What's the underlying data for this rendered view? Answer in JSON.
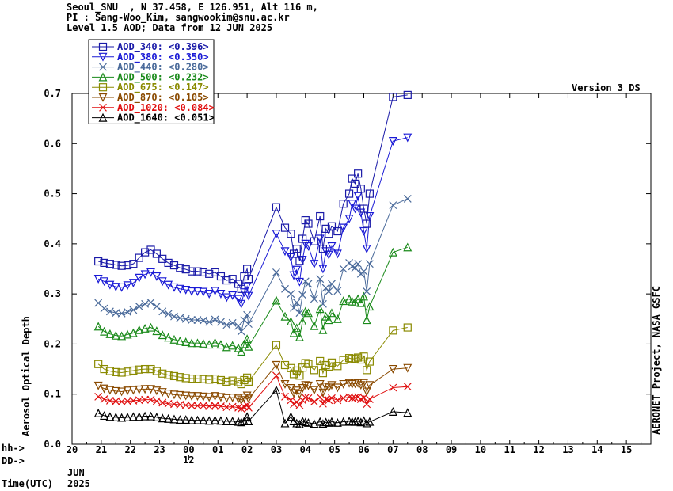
{
  "header": {
    "line1": "Seoul_SNU  , N 37.458, E 126.951, Alt 116 m,",
    "line2": "PI : Sang-Woo_Kim, sangwookim@snu.ac.kr",
    "line3": "Level 1.5 AOD; Data from 12 JUN 2025"
  },
  "version_label": "Version 3 DS",
  "side_label": "AERONET Project, NASA GSFC",
  "axis_labels": {
    "hh": "hh->",
    "dd": "DD->",
    "time": "Time(UTC)",
    "month": "JUN",
    "year": "2025"
  },
  "colors": {
    "AOD_340": "#1a1aa8",
    "AOD_380": "#1a1ad6",
    "AOD_440": "#4a6a9a",
    "AOD_500": "#1a8a1a",
    "AOD_675": "#8a8a00",
    "AOD_870": "#8a4a00",
    "AOD_1020": "#e01010",
    "AOD_1640": "#000000"
  },
  "chart_data": {
    "type": "line",
    "ylabel": "Aerosol Optical Depth",
    "ylim": [
      0,
      0.7
    ],
    "yticks": [
      "0.0",
      "0.1",
      "0.2",
      "0.3",
      "0.4",
      "0.5",
      "0.6",
      "0.7"
    ],
    "xlim": [
      20,
      16
    ],
    "xticks": [
      "20",
      "21",
      "22",
      "23",
      "00",
      "01",
      "02",
      "03",
      "04",
      "05",
      "06",
      "07",
      "08",
      "09",
      "10",
      "11",
      "12",
      "13",
      "14",
      "15"
    ],
    "day_label": "12",
    "x_unit": "hours UTC since 00 UTC 12 JUN 2025 (negative = 11 JUN)",
    "legend_position": "top-left",
    "legend": [
      {
        "name": "AOD_340",
        "mean": "<0.396>",
        "marker": "square"
      },
      {
        "name": "AOD_380",
        "mean": "<0.350>",
        "marker": "triangle-down"
      },
      {
        "name": "AOD_440",
        "mean": "<0.280>",
        "marker": "x"
      },
      {
        "name": "AOD_500",
        "mean": "<0.232>",
        "marker": "triangle-up"
      },
      {
        "name": "AOD_675",
        "mean": "<0.147>",
        "marker": "square"
      },
      {
        "name": "AOD_870",
        "mean": "<0.105>",
        "marker": "triangle-down"
      },
      {
        "name": "AOD_1020",
        "mean": "<0.084>",
        "marker": "x"
      },
      {
        "name": "AOD_1640",
        "mean": "<0.051>",
        "marker": "triangle-up"
      }
    ],
    "x": [
      -3.1,
      -2.9,
      -2.7,
      -2.5,
      -2.3,
      -2.1,
      -1.9,
      -1.7,
      -1.5,
      -1.3,
      -1.1,
      -0.9,
      -0.7,
      -0.5,
      -0.3,
      -0.1,
      0.1,
      0.3,
      0.5,
      0.7,
      0.9,
      1.1,
      1.3,
      1.5,
      1.7,
      1.8,
      1.9,
      2.0,
      2.05,
      3.0,
      3.3,
      3.5,
      3.6,
      3.7,
      3.8,
      3.9,
      4.0,
      4.1,
      4.3,
      4.5,
      4.6,
      4.7,
      4.8,
      4.9,
      5.1,
      5.3,
      5.5,
      5.6,
      5.7,
      5.8,
      5.9,
      6.0,
      6.1,
      6.2,
      7.0,
      7.5
    ],
    "series": [
      {
        "name": "AOD_340",
        "values": [
          0.365,
          0.362,
          0.36,
          0.358,
          0.356,
          0.357,
          0.36,
          0.372,
          0.383,
          0.388,
          0.38,
          0.37,
          0.362,
          0.357,
          0.352,
          0.349,
          0.345,
          0.345,
          0.343,
          0.34,
          0.343,
          0.335,
          0.327,
          0.33,
          0.32,
          0.31,
          0.335,
          0.35,
          0.33,
          0.473,
          0.432,
          0.42,
          0.38,
          0.39,
          0.366,
          0.41,
          0.447,
          0.44,
          0.405,
          0.455,
          0.39,
          0.43,
          0.42,
          0.435,
          0.425,
          0.48,
          0.5,
          0.53,
          0.52,
          0.54,
          0.51,
          0.47,
          0.44,
          0.5,
          0.693,
          0.697
        ]
      },
      {
        "name": "AOD_380",
        "values": [
          0.33,
          0.325,
          0.318,
          0.314,
          0.313,
          0.317,
          0.322,
          0.332,
          0.339,
          0.343,
          0.335,
          0.325,
          0.318,
          0.313,
          0.31,
          0.308,
          0.305,
          0.305,
          0.304,
          0.3,
          0.306,
          0.3,
          0.293,
          0.297,
          0.29,
          0.28,
          0.303,
          0.315,
          0.296,
          0.42,
          0.385,
          0.373,
          0.337,
          0.348,
          0.324,
          0.368,
          0.4,
          0.395,
          0.36,
          0.41,
          0.35,
          0.385,
          0.378,
          0.395,
          0.38,
          0.432,
          0.45,
          0.48,
          0.47,
          0.495,
          0.462,
          0.425,
          0.39,
          0.455,
          0.605,
          0.612
        ]
      },
      {
        "name": "AOD_440",
        "values": [
          0.282,
          0.271,
          0.265,
          0.262,
          0.261,
          0.264,
          0.268,
          0.275,
          0.28,
          0.283,
          0.275,
          0.265,
          0.26,
          0.255,
          0.252,
          0.25,
          0.248,
          0.248,
          0.247,
          0.244,
          0.249,
          0.244,
          0.238,
          0.242,
          0.236,
          0.225,
          0.248,
          0.258,
          0.24,
          0.343,
          0.31,
          0.3,
          0.272,
          0.283,
          0.262,
          0.298,
          0.325,
          0.32,
          0.29,
          0.33,
          0.28,
          0.312,
          0.305,
          0.32,
          0.306,
          0.35,
          0.362,
          0.355,
          0.352,
          0.36,
          0.34,
          0.345,
          0.305,
          0.36,
          0.477,
          0.49
        ]
      },
      {
        "name": "AOD_500",
        "values": [
          0.235,
          0.225,
          0.22,
          0.217,
          0.216,
          0.219,
          0.222,
          0.228,
          0.231,
          0.233,
          0.226,
          0.218,
          0.213,
          0.209,
          0.206,
          0.204,
          0.202,
          0.202,
          0.201,
          0.199,
          0.203,
          0.199,
          0.194,
          0.197,
          0.192,
          0.185,
          0.2,
          0.21,
          0.195,
          0.287,
          0.255,
          0.245,
          0.222,
          0.232,
          0.214,
          0.245,
          0.265,
          0.262,
          0.236,
          0.27,
          0.228,
          0.255,
          0.248,
          0.262,
          0.25,
          0.286,
          0.29,
          0.285,
          0.283,
          0.29,
          0.282,
          0.295,
          0.248,
          0.275,
          0.383,
          0.393
        ]
      },
      {
        "name": "AOD_675",
        "values": [
          0.16,
          0.15,
          0.146,
          0.144,
          0.143,
          0.145,
          0.147,
          0.149,
          0.15,
          0.15,
          0.146,
          0.141,
          0.138,
          0.136,
          0.134,
          0.132,
          0.131,
          0.131,
          0.13,
          0.129,
          0.131,
          0.128,
          0.125,
          0.127,
          0.124,
          0.12,
          0.128,
          0.133,
          0.125,
          0.198,
          0.158,
          0.152,
          0.14,
          0.147,
          0.137,
          0.153,
          0.162,
          0.16,
          0.148,
          0.166,
          0.142,
          0.158,
          0.155,
          0.163,
          0.156,
          0.168,
          0.172,
          0.17,
          0.171,
          0.173,
          0.169,
          0.175,
          0.148,
          0.165,
          0.227,
          0.233
        ]
      },
      {
        "name": "AOD_870",
        "values": [
          0.117,
          0.111,
          0.108,
          0.106,
          0.105,
          0.107,
          0.108,
          0.109,
          0.11,
          0.11,
          0.107,
          0.104,
          0.101,
          0.099,
          0.098,
          0.097,
          0.096,
          0.096,
          0.095,
          0.094,
          0.096,
          0.094,
          0.092,
          0.093,
          0.091,
          0.088,
          0.093,
          0.097,
          0.091,
          0.158,
          0.12,
          0.112,
          0.102,
          0.107,
          0.1,
          0.112,
          0.118,
          0.117,
          0.108,
          0.12,
          0.103,
          0.115,
          0.113,
          0.118,
          0.113,
          0.12,
          0.122,
          0.12,
          0.121,
          0.122,
          0.118,
          0.122,
          0.105,
          0.118,
          0.15,
          0.152
        ]
      },
      {
        "name": "AOD_1020",
        "values": [
          0.095,
          0.09,
          0.087,
          0.086,
          0.085,
          0.086,
          0.087,
          0.088,
          0.089,
          0.089,
          0.086,
          0.083,
          0.081,
          0.08,
          0.079,
          0.078,
          0.077,
          0.077,
          0.077,
          0.076,
          0.077,
          0.076,
          0.074,
          0.075,
          0.073,
          0.071,
          0.075,
          0.078,
          0.073,
          0.137,
          0.095,
          0.088,
          0.08,
          0.084,
          0.078,
          0.088,
          0.093,
          0.092,
          0.085,
          0.094,
          0.081,
          0.09,
          0.088,
          0.092,
          0.088,
          0.092,
          0.094,
          0.092,
          0.093,
          0.094,
          0.09,
          0.093,
          0.08,
          0.09,
          0.113,
          0.115
        ]
      },
      {
        "name": "AOD_1640",
        "values": [
          0.062,
          0.057,
          0.055,
          0.054,
          0.053,
          0.054,
          0.055,
          0.055,
          0.056,
          0.056,
          0.054,
          0.052,
          0.051,
          0.05,
          0.049,
          0.049,
          0.048,
          0.048,
          0.048,
          0.047,
          0.048,
          0.047,
          0.046,
          0.046,
          0.045,
          0.044,
          0.046,
          0.055,
          0.046,
          0.108,
          0.042,
          0.055,
          0.046,
          0.042,
          0.04,
          0.046,
          0.044,
          0.043,
          0.041,
          0.045,
          0.041,
          0.044,
          0.043,
          0.045,
          0.043,
          0.045,
          0.046,
          0.045,
          0.045,
          0.046,
          0.044,
          0.047,
          0.042,
          0.045,
          0.065,
          0.063
        ]
      }
    ]
  }
}
